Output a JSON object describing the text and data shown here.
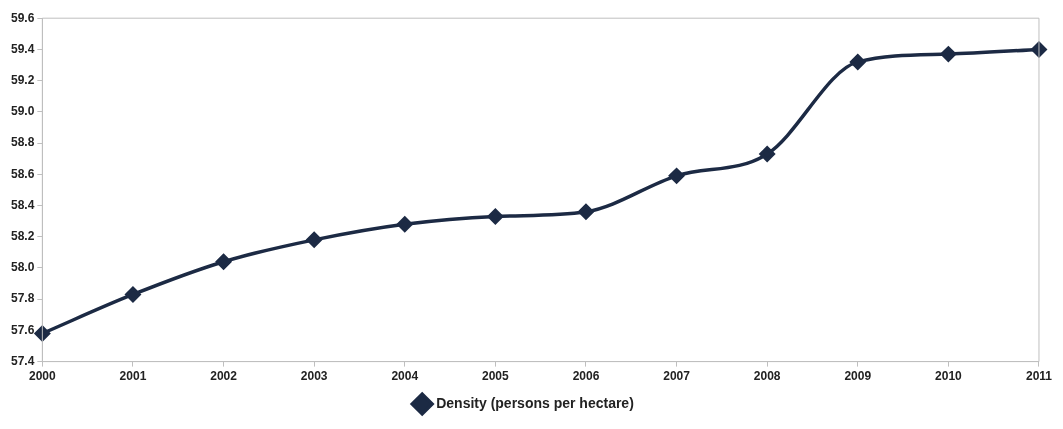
{
  "chart_data": {
    "type": "line",
    "categories": [
      "2000",
      "2001",
      "2002",
      "2003",
      "2004",
      "2005",
      "2006",
      "2007",
      "2008",
      "2009",
      "2010",
      "2011"
    ],
    "series": [
      {
        "name": "Density (persons per hectare)",
        "color": "#1c2a44",
        "values": [
          57.58,
          57.83,
          58.04,
          58.18,
          58.28,
          58.33,
          58.36,
          58.59,
          58.73,
          59.32,
          59.37,
          59.4
        ]
      }
    ],
    "ylim": [
      57.4,
      59.6
    ],
    "yticks": [
      {
        "value": 57.4,
        "label": "57.4"
      },
      {
        "value": 57.6,
        "label": "57.6"
      },
      {
        "value": 57.8,
        "label": "57.8"
      },
      {
        "value": 58.0,
        "label": "58.0"
      },
      {
        "value": 58.2,
        "label": "58.2"
      },
      {
        "value": 58.4,
        "label": "58.4"
      },
      {
        "value": 58.6,
        "label": "58.6"
      },
      {
        "value": 58.8,
        "label": "58.8"
      },
      {
        "value": 59.0,
        "label": "59.0"
      },
      {
        "value": 59.2,
        "label": "59.2"
      },
      {
        "value": 59.4,
        "label": "59.4"
      },
      {
        "value": 59.6,
        "label": "59.6"
      }
    ],
    "grid": false,
    "legend": "bottom",
    "marker": "diamond",
    "line_style": "solid"
  }
}
